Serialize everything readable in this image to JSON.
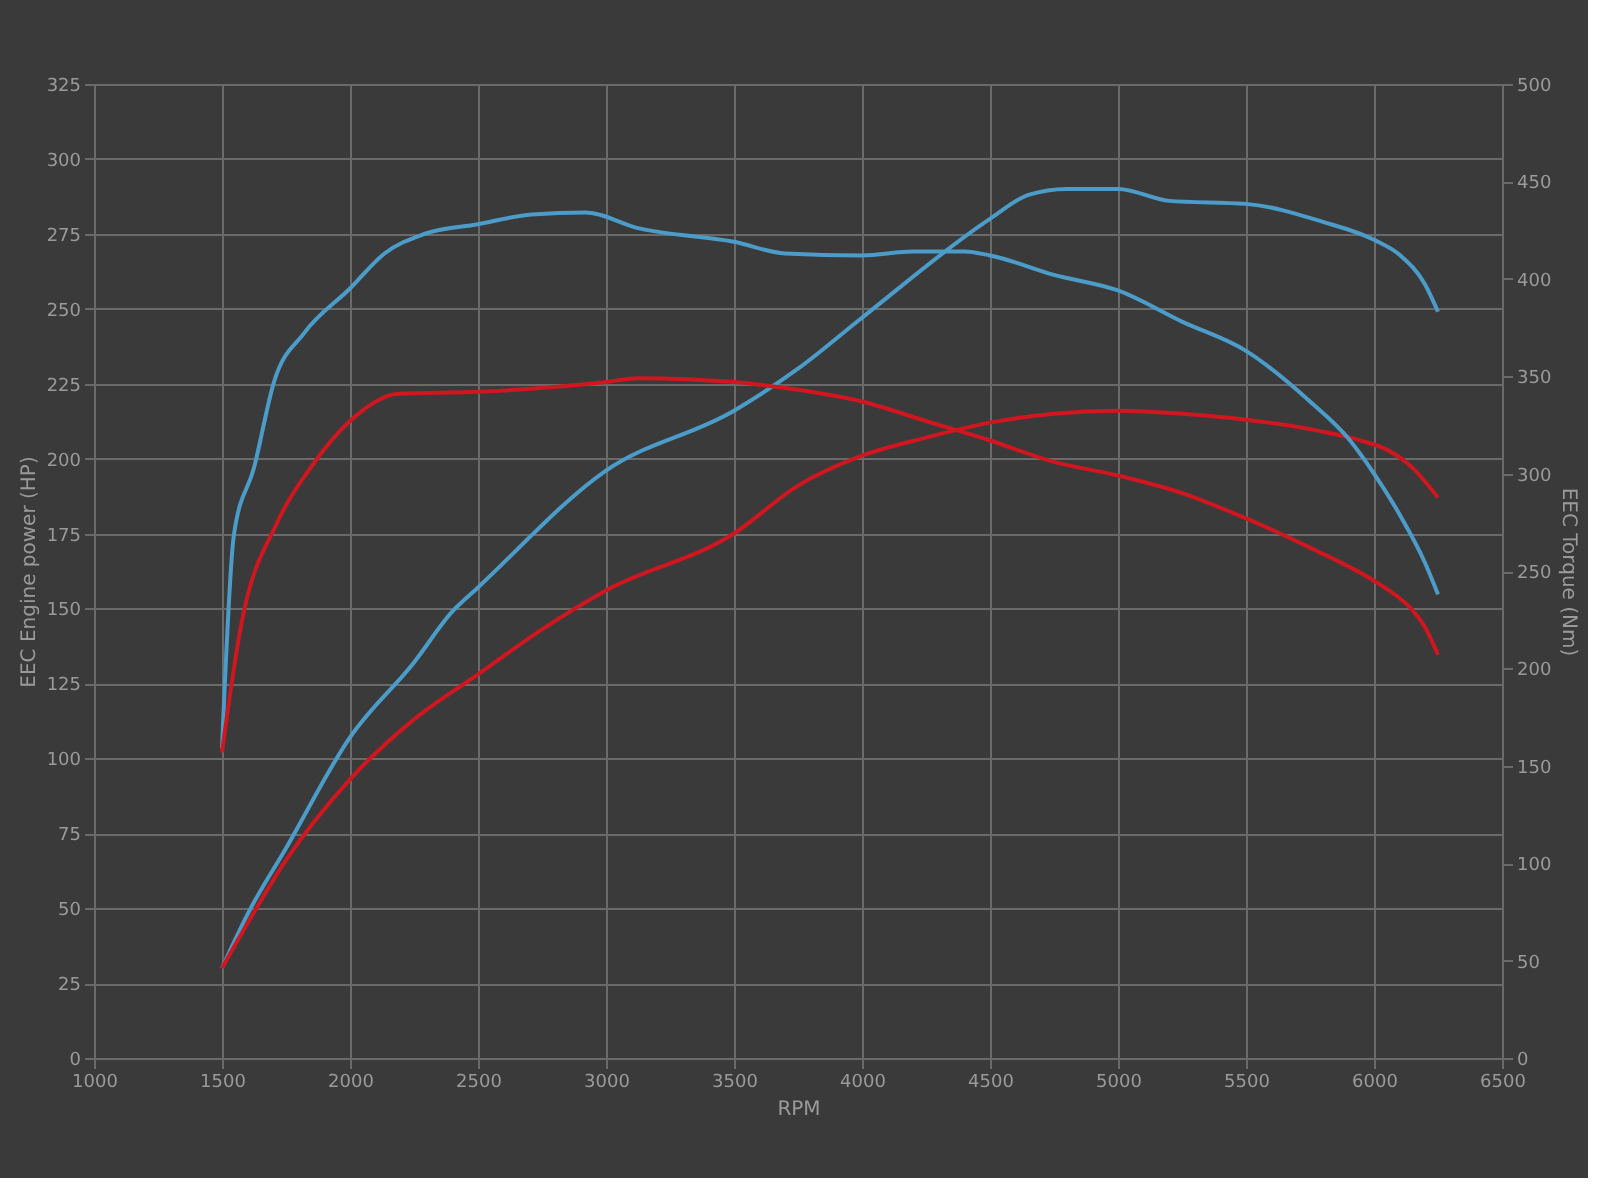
{
  "chart_data": {
    "type": "line",
    "xlabel": "RPM",
    "ylabel": "EEC Engine power (HP)",
    "y2label": "EEC Torque (Nm)",
    "xlim": [
      1000,
      6500
    ],
    "xticks": [
      1000,
      1500,
      2000,
      2500,
      3000,
      3500,
      4000,
      4500,
      5000,
      5500,
      6000,
      6500
    ],
    "ylim": [
      0,
      325
    ],
    "yticks": [
      0,
      25,
      50,
      75,
      100,
      125,
      150,
      175,
      200,
      225,
      250,
      275,
      300,
      325
    ],
    "y2lim": [
      0,
      500
    ],
    "y2ticks": [
      0,
      50,
      100,
      150,
      200,
      250,
      300,
      350,
      400,
      450,
      500
    ],
    "grid": true,
    "legend": false,
    "marker": "none",
    "line_style": "solid",
    "series": [
      {
        "color": "#4b9cc9",
        "x": [
          1500,
          1600,
          1750,
          2000,
          2250,
          2400,
          2500,
          3000,
          3500,
          3750,
          4000,
          4500,
          4650,
          4800,
          5000,
          5200,
          5500,
          5800,
          6000,
          6100,
          6200,
          6250
        ],
        "values": [
          30,
          48,
          70,
          107,
          132,
          149,
          157,
          196,
          216,
          230,
          247,
          280,
          288,
          290,
          290,
          286,
          285,
          279,
          273,
          268,
          258,
          249
        ]
      },
      {
        "color": "#d0161f",
        "x": [
          1500,
          1600,
          1750,
          2000,
          2250,
          2500,
          2750,
          3000,
          3500,
          3750,
          4000,
          4250,
          4500,
          4750,
          5000,
          5250,
          5500,
          5800,
          5950,
          6050,
          6150,
          6250
        ],
        "values": [
          30,
          45,
          66,
          93,
          113,
          128,
          143,
          156,
          175,
          191,
          201,
          207,
          212,
          215,
          216,
          215,
          213,
          209,
          206,
          203,
          197,
          187
        ]
      },
      {
        "color": "#4b9cc9",
        "axis": "y2",
        "x": [
          1500,
          1547,
          1625,
          1703,
          1820,
          2000,
          2135,
          2290,
          2500,
          2710,
          2920,
          3125,
          3500,
          3700,
          4000,
          4200,
          4400,
          4500,
          4750,
          5000,
          5250,
          5500,
          5750,
          5900,
          6000,
          6100,
          6200,
          6250
        ],
        "values": [
          159,
          269,
          303,
          347,
          372,
          395,
          413,
          423,
          428,
          433,
          434,
          426,
          419,
          413,
          412,
          414,
          414,
          412,
          402,
          394,
          378,
          363,
          337,
          318,
          300,
          279,
          254,
          238
        ]
      },
      {
        "color": "#d0161f",
        "axis": "y2",
        "x": [
          1500,
          1573,
          1716,
          1846,
          2000,
          2190,
          2500,
          3000,
          3125,
          3500,
          3750,
          4000,
          4250,
          4500,
          4750,
          5000,
          5250,
          5500,
          5750,
          6000,
          6100,
          6150,
          6200,
          6250
        ],
        "values": [
          157,
          221,
          275,
          303,
          327,
          341,
          342,
          347,
          349,
          347,
          343,
          337,
          327,
          317,
          306,
          299,
          290,
          277,
          262,
          245,
          236,
          230,
          221,
          207
        ]
      }
    ]
  }
}
